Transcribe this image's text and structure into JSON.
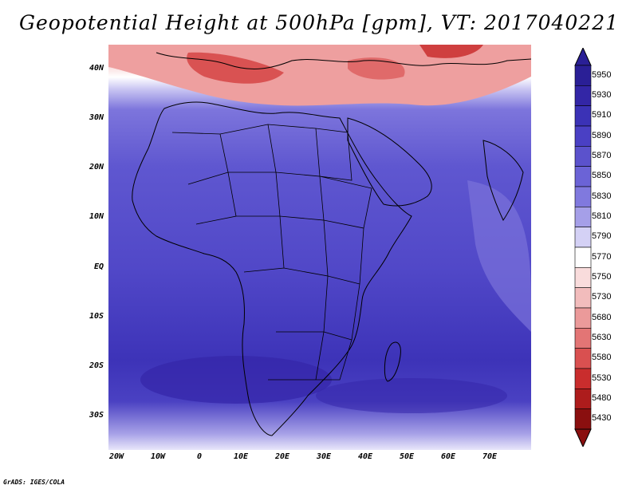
{
  "title": "Geopotential Height at 500hPa [gpm], VT: 2017040221",
  "footer": "GrADS: IGES/COLA",
  "map": {
    "lat_labels": [
      "40N",
      "30N",
      "20N",
      "10N",
      "EQ",
      "10S",
      "20S",
      "30S"
    ],
    "lon_labels": [
      "20W",
      "10W",
      "0",
      "10E",
      "20E",
      "30E",
      "40E",
      "50E",
      "60E",
      "70E"
    ]
  },
  "colorbar": {
    "levels": [
      "5950",
      "5930",
      "5910",
      "5890",
      "5870",
      "5850",
      "5830",
      "5810",
      "5790",
      "5770",
      "5750",
      "5730",
      "5680",
      "5630",
      "5580",
      "5530",
      "5480",
      "5430"
    ],
    "colors": [
      "#2a1f96",
      "#3326a6",
      "#3b32b6",
      "#4a40c4",
      "#5b52cc",
      "#6b63d6",
      "#8079de",
      "#a59fe8",
      "#d4d1f5",
      "#ffffff",
      "#f9dcdc",
      "#f2bcbc",
      "#eb9a9a",
      "#e37575",
      "#d95050",
      "#c92d2d",
      "#ad1c1c",
      "#8a0f0f"
    ],
    "top_color": "#2a1f96",
    "bottom_color": "#8a0f0f"
  }
}
